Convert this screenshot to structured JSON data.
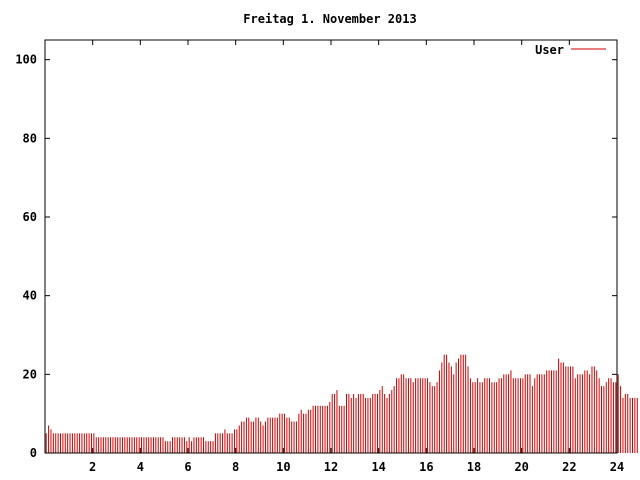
{
  "chart_data": {
    "type": "bar",
    "title": "Freitag 1. November 2013",
    "xlabel": "",
    "ylabel": "",
    "xlim": [
      0,
      24
    ],
    "ylim": [
      0,
      105
    ],
    "x_ticks": [
      2,
      4,
      6,
      8,
      10,
      12,
      14,
      16,
      18,
      20,
      22,
      24
    ],
    "y_ticks": [
      0,
      20,
      40,
      60,
      80,
      100
    ],
    "x_tick_labels": [
      "2",
      "4",
      "6",
      "8",
      "10",
      "12",
      "14",
      "16",
      "18",
      "20",
      "22",
      "24"
    ],
    "y_tick_labels": [
      "0",
      "20",
      "40",
      "60",
      "80",
      "100"
    ],
    "grid": false,
    "legend_position": "top-right",
    "series": [
      {
        "name": "User",
        "color": "#cc0000",
        "sample_interval_hours": 0.1,
        "x_start": 0,
        "values": [
          5,
          7,
          6,
          5,
          5,
          5,
          5,
          5,
          5,
          5,
          5,
          5,
          5,
          5,
          5,
          5,
          5,
          5,
          5,
          5,
          5,
          4,
          4,
          4,
          4,
          4,
          4,
          4,
          4,
          4,
          4,
          4,
          4,
          4,
          4,
          4,
          4,
          4,
          4,
          4,
          4,
          4,
          4,
          4,
          4,
          4,
          4,
          4,
          4,
          4,
          3,
          3,
          3,
          4,
          4,
          4,
          4,
          4,
          4,
          3,
          4,
          3,
          4,
          4,
          4,
          4,
          4,
          3,
          3,
          3,
          3,
          5,
          5,
          5,
          5,
          6,
          5,
          5,
          5,
          6,
          6,
          7,
          8,
          8,
          9,
          9,
          8,
          8,
          9,
          9,
          8,
          7,
          8,
          9,
          9,
          9,
          9,
          9,
          10,
          10,
          10,
          9,
          9,
          8,
          8,
          8,
          10,
          11,
          10,
          10,
          11,
          11,
          12,
          12,
          12,
          12,
          12,
          12,
          12,
          13,
          15,
          15,
          16,
          12,
          12,
          12,
          15,
          15,
          14,
          15,
          14,
          15,
          15,
          15,
          14,
          14,
          14,
          15,
          15,
          15,
          16,
          17,
          15,
          14,
          15,
          16,
          17,
          19,
          19,
          20,
          20,
          19,
          19,
          19,
          18,
          19,
          19,
          19,
          19,
          19,
          19,
          18,
          17,
          17,
          18,
          21,
          23,
          25,
          25,
          23,
          22,
          20,
          23,
          24,
          25,
          25,
          25,
          22,
          19,
          18,
          18,
          19,
          18,
          18,
          19,
          19,
          19,
          18,
          18,
          18,
          19,
          19,
          20,
          20,
          20,
          21,
          19,
          19,
          19,
          19,
          19,
          20,
          20,
          20,
          17,
          19,
          20,
          20,
          20,
          20,
          21,
          21,
          21,
          21,
          21,
          24,
          23,
          23,
          22,
          22,
          22,
          22,
          19,
          20,
          20,
          20,
          21,
          21,
          20,
          22,
          22,
          21,
          19,
          17,
          17,
          18,
          19,
          19,
          18,
          18,
          20,
          17,
          14,
          15,
          15,
          14,
          14,
          14,
          14
        ]
      }
    ]
  }
}
